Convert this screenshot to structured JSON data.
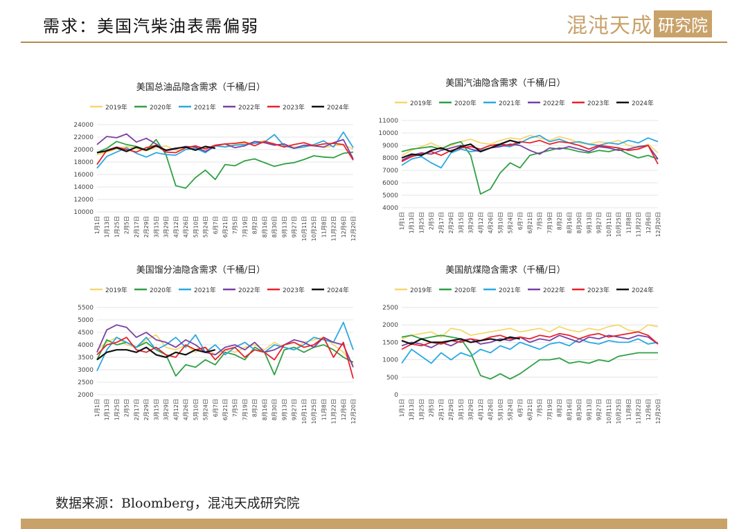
{
  "header": {
    "title": "需求：美国汽柴油表需偏弱",
    "brand_text": "混沌天成",
    "brand_box": "研究院"
  },
  "source": "数据来源：Bloomberg，混沌天成研究院",
  "colors": {
    "2019": "#f5d76e",
    "2020": "#2ea043",
    "2021": "#29a9e0",
    "2022": "#7a3fa3",
    "2023": "#e8212b",
    "2024": "#111111",
    "rule": "#b48a4c",
    "brand": "#c9a26a"
  },
  "chart_data": [
    {
      "type": "line",
      "title": "美国总油品隐含需求（千桶/日）",
      "ylim": [
        10000,
        24000
      ],
      "yticks": [
        10000,
        12000,
        14000,
        16000,
        18000,
        20000,
        22000,
        24000
      ],
      "x_labels": [
        "1月1日",
        "1月13日",
        "1月25日",
        "2月5日",
        "2月17日",
        "2月29日",
        "3月15日",
        "3月29日",
        "4月12日",
        "4月26日",
        "5月10日",
        "5月24日",
        "6月7日",
        "6月21日",
        "7月5日",
        "7月19日",
        "8月2日",
        "8月16日",
        "8月30日",
        "9月13日",
        "9月27日",
        "10月11日",
        "10月25日",
        "11月8日",
        "11月22日",
        "12月6日",
        "12月20日"
      ],
      "grid": true,
      "legend": "top",
      "series": [
        {
          "name": "2019年",
          "values": [
            19200,
            19600,
            20100,
            20500,
            20200,
            19800,
            20300,
            20600,
            19900,
            20000,
            20400,
            20200,
            20700,
            20500,
            20800,
            21000,
            21200,
            21400,
            20800,
            20600,
            20400,
            20500,
            20700,
            20300,
            20600,
            20800,
            20100
          ]
        },
        {
          "name": "2020年",
          "values": [
            19500,
            20200,
            21300,
            20800,
            20500,
            19900,
            21600,
            19200,
            14200,
            13800,
            15500,
            16700,
            15200,
            17600,
            17400,
            18200,
            18500,
            17900,
            17300,
            17700,
            17900,
            18400,
            19000,
            18800,
            18700,
            19400,
            19600
          ]
        },
        {
          "name": "2021年",
          "values": [
            17000,
            18900,
            19600,
            20300,
            19400,
            18800,
            19500,
            19200,
            19100,
            20000,
            20200,
            19500,
            20600,
            20400,
            20700,
            20800,
            21000,
            21200,
            22400,
            20600,
            20200,
            20400,
            20800,
            21400,
            20400,
            22800,
            20300
          ]
        },
        {
          "name": "2022年",
          "values": [
            20800,
            22100,
            21900,
            22500,
            21200,
            21800,
            20900,
            19800,
            20100,
            20500,
            20400,
            19700,
            20600,
            20900,
            20300,
            20600,
            21300,
            21100,
            20700,
            20900,
            20200,
            20700,
            20600,
            20400,
            21100,
            21600,
            18500
          ]
        },
        {
          "name": "2023年",
          "values": [
            17600,
            19900,
            20400,
            20000,
            19600,
            20300,
            20700,
            19600,
            19500,
            20300,
            20600,
            20100,
            20700,
            20900,
            21000,
            21200,
            20600,
            21300,
            20900,
            20400,
            20800,
            21100,
            20600,
            20900,
            21000,
            20800,
            18300
          ]
        },
        {
          "name": "2024年",
          "values": [
            19500,
            19800,
            20300,
            19700,
            20400,
            19900,
            20600,
            19900,
            20200,
            20400,
            19900,
            20500,
            20200,
            null,
            null,
            null,
            null,
            null,
            null,
            null,
            null,
            null,
            null,
            null,
            null,
            null,
            null
          ]
        }
      ]
    },
    {
      "type": "line",
      "title": "美国汽油隐含需求（千桶/日）",
      "ylim": [
        4000,
        11000
      ],
      "yticks": [
        4000,
        5000,
        6000,
        7000,
        8000,
        9000,
        10000,
        11000
      ],
      "x_labels": [
        "1月1日",
        "1月13日",
        "1月25日",
        "2月5日",
        "2月17日",
        "2月29日",
        "3月15日",
        "3月29日",
        "4月12日",
        "4月26日",
        "5月10日",
        "5月24日",
        "6月7日",
        "6月21日",
        "7月5日",
        "7月19日",
        "8月2日",
        "8月16日",
        "8月30日",
        "9月13日",
        "9月27日",
        "10月11日",
        "10月25日",
        "11月8日",
        "11月22日",
        "12月6日",
        "12月20日"
      ],
      "grid": true,
      "legend": "top",
      "series": [
        {
          "name": "2019年",
          "values": [
            8200,
            8600,
            8900,
            9200,
            8800,
            9000,
            9300,
            9500,
            9200,
            9100,
            9400,
            9600,
            9500,
            9800,
            9600,
            9400,
            9700,
            9500,
            9200,
            9100,
            9300,
            9200,
            9400,
            9000,
            8800,
            9100,
            8400
          ]
        },
        {
          "name": "2020年",
          "values": [
            8500,
            8700,
            8800,
            8900,
            8700,
            9100,
            9300,
            8200,
            5100,
            5500,
            6800,
            7600,
            7200,
            8200,
            8400,
            8600,
            8800,
            8700,
            8500,
            8400,
            8600,
            8500,
            8700,
            8300,
            8000,
            8200,
            7900
          ]
        },
        {
          "name": "2021年",
          "values": [
            7400,
            7900,
            8100,
            7600,
            7200,
            8400,
            8700,
            8500,
            8600,
            8800,
            9000,
            8900,
            9200,
            9600,
            9800,
            9300,
            9500,
            9200,
            9300,
            9100,
            9000,
            9200,
            9100,
            9400,
            9200,
            9600,
            9300
          ]
        },
        {
          "name": "2022年",
          "values": [
            7800,
            8200,
            8400,
            8300,
            8600,
            8800,
            9000,
            8700,
            8500,
            8800,
            8900,
            9100,
            9000,
            8600,
            8300,
            8800,
            8700,
            8900,
            8700,
            8500,
            8900,
            8800,
            8600,
            8700,
            8900,
            9000,
            7900
          ]
        },
        {
          "name": "2023年",
          "values": [
            7700,
            8100,
            8300,
            8500,
            8200,
            8600,
            8800,
            8900,
            8700,
            9000,
            9100,
            9000,
            9300,
            9200,
            9400,
            9100,
            9300,
            9200,
            9000,
            8700,
            9000,
            8900,
            8800,
            8600,
            8700,
            9000,
            7500
          ]
        },
        {
          "name": "2024年",
          "values": [
            8000,
            8300,
            8200,
            8600,
            8800,
            8500,
            8900,
            9100,
            8500,
            8800,
            9100,
            9400,
            9200,
            null,
            null,
            null,
            null,
            null,
            null,
            null,
            null,
            null,
            null,
            null,
            null,
            null,
            null
          ]
        }
      ]
    },
    {
      "type": "line",
      "title": "美国馏分油隐含需求（千桶/日）",
      "ylim": [
        2000,
        5500
      ],
      "yticks": [
        2000,
        2500,
        3000,
        3500,
        4000,
        4500,
        5000,
        5500
      ],
      "x_labels": [
        "1月1日",
        "1月13日",
        "1月25日",
        "2月5日",
        "2月17日",
        "2月29日",
        "3月15日",
        "3月29日",
        "4月12日",
        "4月26日",
        "5月10日",
        "5月24日",
        "6月7日",
        "6月21日",
        "7月5日",
        "7月19日",
        "8月2日",
        "8月16日",
        "8月30日",
        "9月13日",
        "9月27日",
        "10月11日",
        "10月25日",
        "11月8日",
        "11月22日",
        "12月6日",
        "12月20日"
      ],
      "grid": true,
      "legend": "top",
      "series": [
        {
          "name": "2019年",
          "values": [
            3800,
            4100,
            4300,
            4000,
            3900,
            4200,
            4400,
            3900,
            3800,
            4000,
            3700,
            3900,
            3600,
            3800,
            3700,
            3900,
            4000,
            3800,
            4100,
            3900,
            3800,
            4100,
            4200,
            4300,
            4000,
            3700,
            3200
          ]
        },
        {
          "name": "2020年",
          "values": [
            3400,
            4200,
            4000,
            4100,
            3900,
            4100,
            3800,
            3600,
            2750,
            3200,
            3100,
            3400,
            3200,
            3700,
            3600,
            3400,
            3900,
            3700,
            2800,
            3800,
            3900,
            3700,
            3900,
            4000,
            3800,
            3500,
            3300
          ]
        },
        {
          "name": "2021年",
          "values": [
            2950,
            3800,
            4300,
            4100,
            3900,
            4300,
            3800,
            4000,
            4300,
            3900,
            4400,
            3700,
            4000,
            3600,
            3900,
            4100,
            3800,
            3700,
            4000,
            3900,
            3800,
            4000,
            4300,
            4200,
            4100,
            4900,
            3800
          ]
        },
        {
          "name": "2022年",
          "values": [
            3700,
            4600,
            4800,
            4700,
            4300,
            4500,
            4200,
            4100,
            3900,
            4200,
            4000,
            3700,
            3600,
            3900,
            4000,
            3800,
            4100,
            3700,
            3800,
            4000,
            4200,
            4100,
            3900,
            4300,
            4100,
            4000,
            3100
          ]
        },
        {
          "name": "2023年",
          "values": [
            3600,
            4000,
            4100,
            4300,
            3800,
            3700,
            3900,
            3600,
            3500,
            4000,
            3800,
            3900,
            3400,
            3800,
            3900,
            3500,
            3800,
            3700,
            3400,
            4000,
            4100,
            3900,
            4000,
            4300,
            3500,
            4100,
            2650
          ]
        },
        {
          "name": "2024年",
          "values": [
            3400,
            3700,
            3800,
            3800,
            3700,
            3900,
            3600,
            3500,
            3700,
            3600,
            3800,
            3700,
            3800,
            null,
            null,
            null,
            null,
            null,
            null,
            null,
            null,
            null,
            null,
            null,
            null,
            null,
            null
          ]
        }
      ]
    },
    {
      "type": "line",
      "title": "美国航煤隐含需求（千桶/日）",
      "ylim": [
        0,
        2500
      ],
      "yticks": [
        0,
        500,
        1000,
        1500,
        2000,
        2500
      ],
      "x_labels": [
        "1月1日",
        "1月13日",
        "1月25日",
        "2月5日",
        "2月17日",
        "2月29日",
        "3月15日",
        "3月29日",
        "4月12日",
        "4月26日",
        "5月10日",
        "5月24日",
        "6月7日",
        "6月21日",
        "7月5日",
        "7月19日",
        "8月2日",
        "8月16日",
        "8月30日",
        "9月13日",
        "9月27日",
        "10月11日",
        "10月25日",
        "11月8日",
        "11月22日",
        "12月6日",
        "12月20日"
      ],
      "grid": true,
      "legend": "top",
      "series": [
        {
          "name": "2019年",
          "values": [
            1600,
            1700,
            1750,
            1800,
            1650,
            1900,
            1850,
            1700,
            1750,
            1800,
            1850,
            1900,
            1800,
            1850,
            1900,
            1800,
            1950,
            1850,
            1800,
            1900,
            1850,
            1950,
            2000,
            1850,
            1800,
            2000,
            1950
          ]
        },
        {
          "name": "2020年",
          "values": [
            1650,
            1700,
            1600,
            1650,
            1700,
            1650,
            1600,
            1200,
            550,
            450,
            600,
            450,
            600,
            800,
            1000,
            1000,
            1050,
            900,
            950,
            900,
            1000,
            950,
            1100,
            1150,
            1200,
            1200,
            1200
          ]
        },
        {
          "name": "2021年",
          "values": [
            900,
            1300,
            1100,
            900,
            1200,
            1000,
            1200,
            1100,
            1300,
            1200,
            1400,
            1300,
            1500,
            1400,
            1300,
            1450,
            1500,
            1400,
            1600,
            1500,
            1450,
            1550,
            1500,
            1500,
            1600,
            1450,
            1500
          ]
        },
        {
          "name": "2022年",
          "values": [
            1400,
            1500,
            1450,
            1350,
            1500,
            1400,
            1550,
            1600,
            1450,
            1500,
            1600,
            1550,
            1650,
            1500,
            1600,
            1550,
            1700,
            1600,
            1500,
            1650,
            1600,
            1700,
            1650,
            1600,
            1700,
            1650,
            1450
          ]
        },
        {
          "name": "2023年",
          "values": [
            1300,
            1450,
            1400,
            1500,
            1450,
            1550,
            1500,
            1600,
            1550,
            1650,
            1700,
            1600,
            1650,
            1600,
            1700,
            1650,
            1750,
            1700,
            1600,
            1700,
            1750,
            1650,
            1700,
            1750,
            1800,
            1700,
            1450
          ]
        },
        {
          "name": "2024年",
          "values": [
            1550,
            1450,
            1600,
            1500,
            1500,
            1550,
            1600,
            1500,
            1550,
            1600,
            1550,
            1650,
            1600,
            null,
            null,
            null,
            null,
            null,
            null,
            null,
            null,
            null,
            null,
            null,
            null,
            null,
            null
          ]
        }
      ]
    }
  ]
}
